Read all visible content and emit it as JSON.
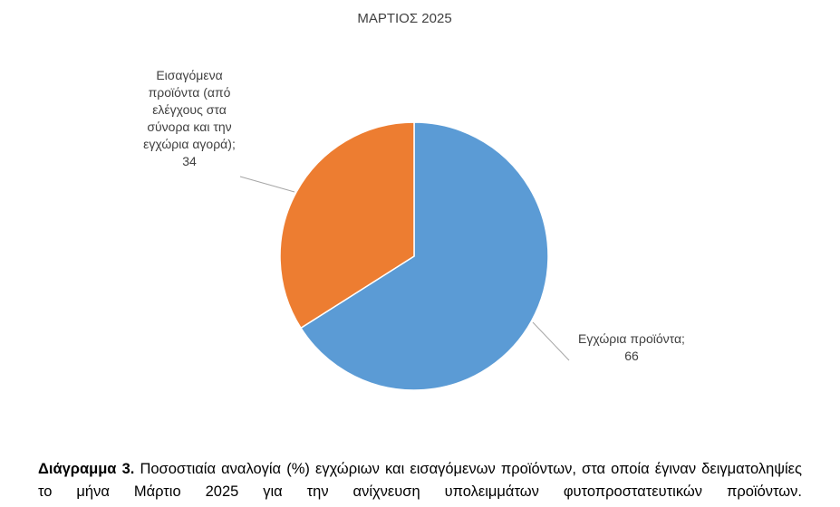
{
  "chart_data": {
    "type": "pie",
    "title": "ΜΑΡΤΙΟΣ 2025",
    "categories": [
      "Εγχώρια προϊόντα;",
      "Εισαγόμενα προϊόντα (από ελέγχους στα σύνορα και την εγχώρια αγορά);"
    ],
    "values": [
      66,
      34
    ],
    "colors": [
      "#5b9bd5",
      "#ed7d31"
    ],
    "caption_label": "Διάγραμμα 3.",
    "caption": "Ποσοστιαία αναλογία (%) εγχώριων και εισαγόμενων προϊόντων, στα οποία έγιναν δειγματοληψίες το μήνα Μάρτιο 2025 για την ανίχνευση υπολειμμάτων φυτοπροστατευτικών προϊόντων."
  }
}
